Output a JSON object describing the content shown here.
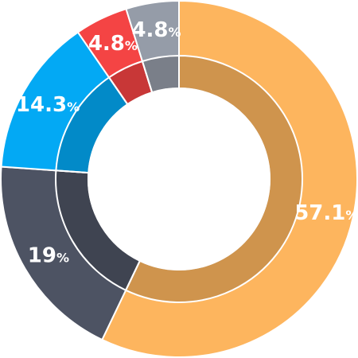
{
  "chart_data": {
    "type": "pie",
    "variant": "donut",
    "title": "",
    "legend": "none",
    "slices": [
      {
        "value": 57.1,
        "label": "57.1",
        "unit": "%",
        "color": "#FDB55E"
      },
      {
        "value": 19,
        "label": "19",
        "unit": "%",
        "color": "#4D5363"
      },
      {
        "value": 14.3,
        "label": "14.3",
        "unit": "%",
        "color": "#03A9F4"
      },
      {
        "value": 4.8,
        "label": "4.8",
        "unit": "%",
        "color": "#F44444"
      },
      {
        "value": 4.8,
        "label": "4.8",
        "unit": "%",
        "color": "#959CA8"
      }
    ]
  }
}
